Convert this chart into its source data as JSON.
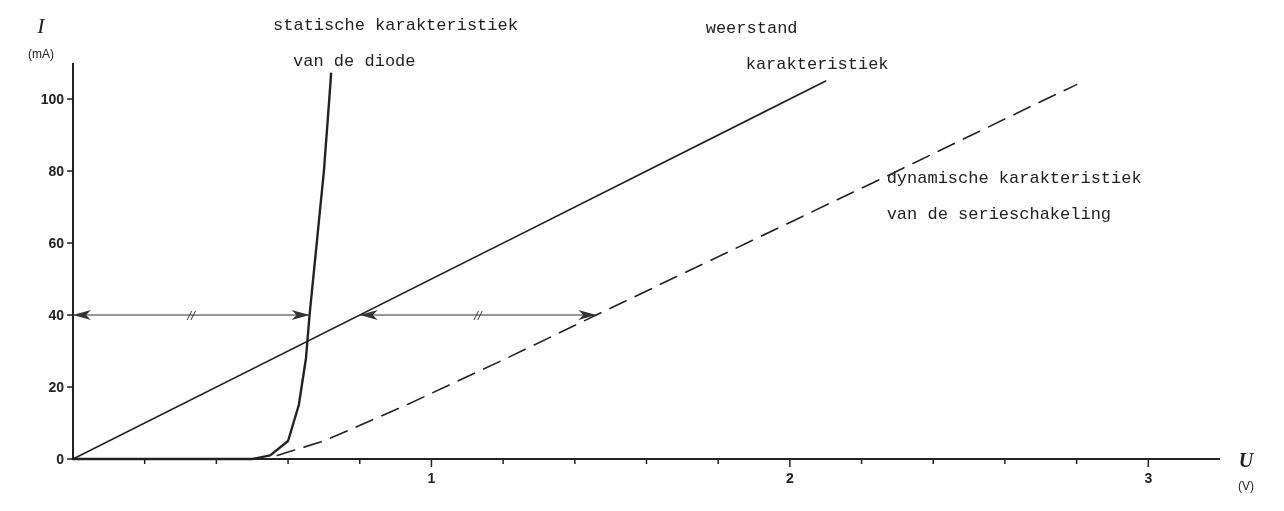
{
  "chart_data": {
    "type": "line",
    "xlabel": "U$_{(V)}$",
    "ylabel": "I$_{(mA)}$",
    "xlim": [
      0,
      3.2
    ],
    "ylim": [
      0,
      110
    ],
    "xticks": [
      {
        "value": 0.2,
        "label": null
      },
      {
        "value": 0.4,
        "label": null
      },
      {
        "value": 0.6,
        "label": null
      },
      {
        "value": 0.8,
        "label": null
      },
      1,
      {
        "value": 1.2,
        "label": null
      },
      {
        "value": 1.4,
        "label": null
      },
      {
        "value": 1.6,
        "label": null
      },
      {
        "value": 1.8,
        "label": null
      },
      2,
      {
        "value": 2.2,
        "label": null
      },
      {
        "value": 2.4,
        "label": null
      },
      {
        "value": 2.6,
        "label": null
      },
      {
        "value": 2.8,
        "label": null
      },
      3
    ],
    "yticks": [
      0,
      20,
      40,
      60,
      80,
      100
    ],
    "grid": false,
    "marker": "none",
    "series": [
      {
        "name": "statische karakteristiek van de diode",
        "color": "#222222",
        "line_style": "solid",
        "x": [
          0,
          0.5,
          0.55,
          0.6,
          0.63,
          0.65,
          0.66,
          0.68,
          0.7,
          0.715,
          0.72
        ],
        "values": [
          0,
          0,
          1,
          5,
          15,
          28,
          40,
          60,
          80,
          100,
          107
        ]
      },
      {
        "name": "weerstand karakteristiek",
        "color": "#222222",
        "line_style": "solid",
        "x": [
          0,
          2.1
        ],
        "values": [
          0,
          105
        ]
      },
      {
        "name": "dynamische karakteristiek van de serieschakeling",
        "color": "#222222",
        "line_style": "dashed",
        "x": [
          0.57,
          0.7,
          0.93,
          1.21,
          1.46,
          1.88,
          2.3,
          2.715,
          2.8
        ],
        "values": [
          1,
          5,
          15,
          28,
          40,
          60,
          80,
          100,
          104
        ]
      }
    ],
    "annotations": [
      "//",
      "//"
    ]
  }
}
